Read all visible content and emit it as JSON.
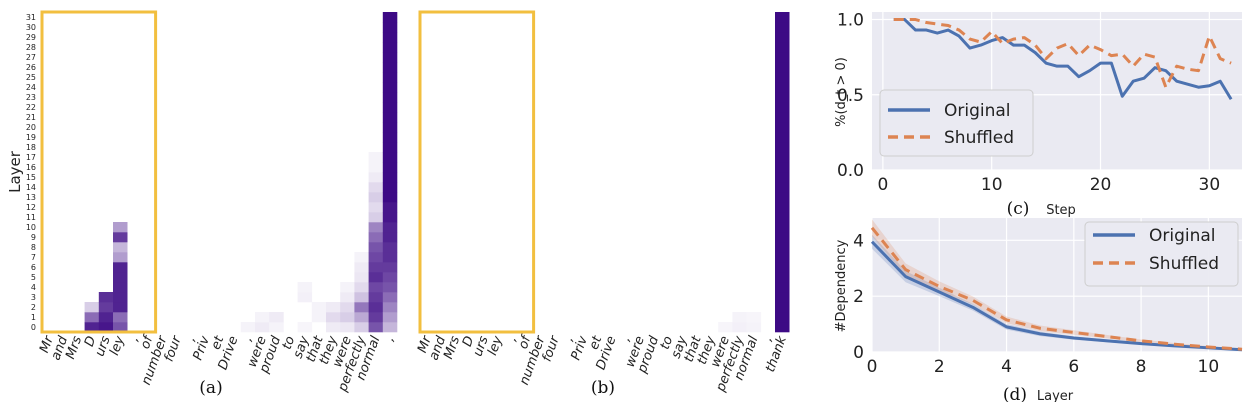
{
  "chart_data": [
    {
      "id": "a",
      "type": "heatmap",
      "caption": "(a)",
      "ylabel": "Layer",
      "layers": [
        0,
        1,
        2,
        3,
        4,
        5,
        6,
        7,
        8,
        9,
        10,
        11,
        12,
        13,
        14,
        15,
        16,
        17,
        18,
        19,
        20,
        21,
        22,
        23,
        24,
        25,
        26,
        27,
        28,
        29,
        30,
        31
      ],
      "tokens": [
        "Mr",
        "and",
        "Mrs",
        "D",
        "urs",
        "ley",
        ",",
        "of",
        "number",
        "four",
        ",",
        "Priv",
        "et",
        "Drive",
        ",",
        "were",
        "proud",
        "to",
        "say",
        "that",
        "they",
        "were",
        "perfectly",
        "normal",
        ","
      ],
      "highlight_tokens": [
        0,
        7
      ],
      "cells": [
        {
          "token": 3,
          "layer": 0,
          "v": 0.9
        },
        {
          "token": 3,
          "layer": 1,
          "v": 0.6
        },
        {
          "token": 3,
          "layer": 2,
          "v": 0.2
        },
        {
          "token": 4,
          "layer": 0,
          "v": 0.95
        },
        {
          "token": 4,
          "layer": 1,
          "v": 0.9
        },
        {
          "token": 4,
          "layer": 2,
          "v": 0.8
        },
        {
          "token": 4,
          "layer": 3,
          "v": 0.85
        },
        {
          "token": 5,
          "layer": 0,
          "v": 0.7
        },
        {
          "token": 5,
          "layer": 1,
          "v": 0.6
        },
        {
          "token": 5,
          "layer": 2,
          "v": 0.9
        },
        {
          "token": 5,
          "layer": 3,
          "v": 0.9
        },
        {
          "token": 5,
          "layer": 4,
          "v": 0.9
        },
        {
          "token": 5,
          "layer": 5,
          "v": 0.9
        },
        {
          "token": 5,
          "layer": 6,
          "v": 0.9
        },
        {
          "token": 5,
          "layer": 7,
          "v": 0.4
        },
        {
          "token": 5,
          "layer": 8,
          "v": 0.3
        },
        {
          "token": 5,
          "layer": 9,
          "v": 0.8
        },
        {
          "token": 5,
          "layer": 10,
          "v": 0.4
        },
        {
          "token": 14,
          "layer": 0,
          "v": 0.05
        },
        {
          "token": 15,
          "layer": 0,
          "v": 0.08
        },
        {
          "token": 15,
          "layer": 1,
          "v": 0.05
        },
        {
          "token": 16,
          "layer": 0,
          "v": 0.05
        },
        {
          "token": 16,
          "layer": 1,
          "v": 0.08
        },
        {
          "token": 18,
          "layer": 0,
          "v": 0.04
        },
        {
          "token": 18,
          "layer": 3,
          "v": 0.06
        },
        {
          "token": 18,
          "layer": 4,
          "v": 0.05
        },
        {
          "token": 19,
          "layer": 1,
          "v": 0.05
        },
        {
          "token": 19,
          "layer": 2,
          "v": 0.05
        },
        {
          "token": 20,
          "layer": 0,
          "v": 0.08
        },
        {
          "token": 20,
          "layer": 1,
          "v": 0.15
        },
        {
          "token": 20,
          "layer": 2,
          "v": 0.08
        },
        {
          "token": 21,
          "layer": 0,
          "v": 0.1
        },
        {
          "token": 21,
          "layer": 1,
          "v": 0.2
        },
        {
          "token": 21,
          "layer": 2,
          "v": 0.15
        },
        {
          "token": 21,
          "layer": 3,
          "v": 0.08
        },
        {
          "token": 21,
          "layer": 4,
          "v": 0.05
        },
        {
          "token": 22,
          "layer": 0,
          "v": 0.2
        },
        {
          "token": 22,
          "layer": 1,
          "v": 0.35
        },
        {
          "token": 22,
          "layer": 2,
          "v": 0.55
        },
        {
          "token": 22,
          "layer": 3,
          "v": 0.25
        },
        {
          "token": 22,
          "layer": 4,
          "v": 0.15
        },
        {
          "token": 22,
          "layer": 5,
          "v": 0.1
        },
        {
          "token": 22,
          "layer": 6,
          "v": 0.08
        },
        {
          "token": 22,
          "layer": 7,
          "v": 0.05
        },
        {
          "token": 23,
          "layer": 0,
          "v": 0.7
        },
        {
          "token": 23,
          "layer": 1,
          "v": 0.8
        },
        {
          "token": 23,
          "layer": 2,
          "v": 0.85
        },
        {
          "token": 23,
          "layer": 3,
          "v": 0.8
        },
        {
          "token": 23,
          "layer": 4,
          "v": 0.75
        },
        {
          "token": 23,
          "layer": 5,
          "v": 0.85
        },
        {
          "token": 23,
          "layer": 6,
          "v": 0.8
        },
        {
          "token": 23,
          "layer": 7,
          "v": 0.75
        },
        {
          "token": 23,
          "layer": 8,
          "v": 0.7
        },
        {
          "token": 23,
          "layer": 9,
          "v": 0.6
        },
        {
          "token": 23,
          "layer": 10,
          "v": 0.5
        },
        {
          "token": 23,
          "layer": 11,
          "v": 0.2
        },
        {
          "token": 23,
          "layer": 12,
          "v": 0.15
        },
        {
          "token": 23,
          "layer": 13,
          "v": 0.2
        },
        {
          "token": 23,
          "layer": 14,
          "v": 0.15
        },
        {
          "token": 23,
          "layer": 15,
          "v": 0.08
        },
        {
          "token": 23,
          "layer": 16,
          "v": 0.05
        },
        {
          "token": 23,
          "layer": 17,
          "v": 0.05
        },
        {
          "token": 24,
          "layer": 0,
          "v": 0.3
        },
        {
          "token": 24,
          "layer": 1,
          "v": 0.4
        },
        {
          "token": 24,
          "layer": 2,
          "v": 0.5
        },
        {
          "token": 24,
          "layer": 3,
          "v": 0.6
        },
        {
          "token": 24,
          "layer": 4,
          "v": 0.7
        },
        {
          "token": 24,
          "layer": 5,
          "v": 0.75
        },
        {
          "token": 24,
          "layer": 6,
          "v": 0.8
        },
        {
          "token": 24,
          "layer": 7,
          "v": 0.85
        },
        {
          "token": 24,
          "layer": 8,
          "v": 0.85
        },
        {
          "token": 24,
          "layer": 9,
          "v": 0.9
        },
        {
          "token": 24,
          "layer": 10,
          "v": 0.9
        },
        {
          "token": 24,
          "layer": 11,
          "v": 0.95
        },
        {
          "token": 24,
          "layer": 12,
          "v": 0.95
        },
        {
          "token": 24,
          "layer": 13,
          "v": 1.0
        },
        {
          "token": 24,
          "layer": 14,
          "v": 1.0
        },
        {
          "token": 24,
          "layer": 15,
          "v": 1.0
        },
        {
          "token": 24,
          "layer": 16,
          "v": 1.0
        },
        {
          "token": 24,
          "layer": 17,
          "v": 1.0
        },
        {
          "token": 24,
          "layer": 18,
          "v": 1.0
        },
        {
          "token": 24,
          "layer": 19,
          "v": 1.0
        },
        {
          "token": 24,
          "layer": 20,
          "v": 1.0
        },
        {
          "token": 24,
          "layer": 21,
          "v": 1.0
        },
        {
          "token": 24,
          "layer": 22,
          "v": 1.0
        },
        {
          "token": 24,
          "layer": 23,
          "v": 1.0
        },
        {
          "token": 24,
          "layer": 24,
          "v": 1.0
        },
        {
          "token": 24,
          "layer": 25,
          "v": 1.0
        },
        {
          "token": 24,
          "layer": 26,
          "v": 1.0
        },
        {
          "token": 24,
          "layer": 27,
          "v": 1.0
        },
        {
          "token": 24,
          "layer": 28,
          "v": 1.0
        },
        {
          "token": 24,
          "layer": 29,
          "v": 1.0
        },
        {
          "token": 24,
          "layer": 30,
          "v": 1.0
        },
        {
          "token": 24,
          "layer": 31,
          "v": 1.0
        }
      ]
    },
    {
      "id": "b",
      "type": "heatmap",
      "caption": "(b)",
      "tokens": [
        "Mr",
        "and",
        "Mrs",
        "D",
        "urs",
        "ley",
        ",",
        "of",
        "number",
        "four",
        ",",
        "Priv",
        "et",
        "Drive",
        ",",
        "were",
        "proud",
        "to",
        "say",
        "that",
        "they",
        "were",
        "perfectly",
        "normal",
        ",",
        "thank"
      ],
      "highlight_tokens": [
        0,
        7
      ],
      "cells": [
        {
          "token": 21,
          "layer": 0,
          "v": 0.04
        },
        {
          "token": 22,
          "layer": 0,
          "v": 0.06
        },
        {
          "token": 22,
          "layer": 1,
          "v": 0.05
        },
        {
          "token": 23,
          "layer": 0,
          "v": 0.05
        },
        {
          "token": 23,
          "layer": 1,
          "v": 0.04
        },
        {
          "token": 25,
          "layer": 0,
          "v": 1.0
        },
        {
          "token": 25,
          "layer": 1,
          "v": 1.0
        },
        {
          "token": 25,
          "layer": 2,
          "v": 1.0
        },
        {
          "token": 25,
          "layer": 3,
          "v": 1.0
        },
        {
          "token": 25,
          "layer": 4,
          "v": 1.0
        },
        {
          "token": 25,
          "layer": 5,
          "v": 1.0
        },
        {
          "token": 25,
          "layer": 6,
          "v": 1.0
        },
        {
          "token": 25,
          "layer": 7,
          "v": 1.0
        },
        {
          "token": 25,
          "layer": 8,
          "v": 1.0
        },
        {
          "token": 25,
          "layer": 9,
          "v": 1.0
        },
        {
          "token": 25,
          "layer": 10,
          "v": 1.0
        },
        {
          "token": 25,
          "layer": 11,
          "v": 1.0
        },
        {
          "token": 25,
          "layer": 12,
          "v": 1.0
        },
        {
          "token": 25,
          "layer": 13,
          "v": 1.0
        },
        {
          "token": 25,
          "layer": 14,
          "v": 1.0
        },
        {
          "token": 25,
          "layer": 15,
          "v": 1.0
        },
        {
          "token": 25,
          "layer": 16,
          "v": 1.0
        },
        {
          "token": 25,
          "layer": 17,
          "v": 1.0
        },
        {
          "token": 25,
          "layer": 18,
          "v": 1.0
        },
        {
          "token": 25,
          "layer": 19,
          "v": 1.0
        },
        {
          "token": 25,
          "layer": 20,
          "v": 1.0
        },
        {
          "token": 25,
          "layer": 21,
          "v": 1.0
        },
        {
          "token": 25,
          "layer": 22,
          "v": 1.0
        },
        {
          "token": 25,
          "layer": 23,
          "v": 1.0
        },
        {
          "token": 25,
          "layer": 24,
          "v": 1.0
        },
        {
          "token": 25,
          "layer": 25,
          "v": 1.0
        },
        {
          "token": 25,
          "layer": 26,
          "v": 1.0
        },
        {
          "token": 25,
          "layer": 27,
          "v": 1.0
        },
        {
          "token": 25,
          "layer": 28,
          "v": 1.0
        },
        {
          "token": 25,
          "layer": 29,
          "v": 1.0
        },
        {
          "token": 25,
          "layer": 30,
          "v": 1.0
        },
        {
          "token": 25,
          "layer": 31,
          "v": 1.0
        }
      ]
    },
    {
      "id": "c",
      "type": "line",
      "caption": "(c)",
      "xlabel": "Step",
      "ylabel": "%(d_t > 0)",
      "xlim": [
        -1,
        33
      ],
      "ylim": [
        0,
        1.05
      ],
      "xticks": [
        0,
        10,
        20,
        30
      ],
      "yticks": [
        0.0,
        0.5,
        1.0
      ],
      "legend_position": "lower-left",
      "series": [
        {
          "name": "Original",
          "style": "solid",
          "color": "#4c72b0",
          "x": [
            1,
            2,
            3,
            4,
            5,
            6,
            7,
            8,
            9,
            10,
            11,
            12,
            13,
            14,
            15,
            16,
            17,
            18,
            19,
            20,
            21,
            22,
            23,
            24,
            25,
            26,
            27,
            28,
            29,
            30,
            31,
            32
          ],
          "y": [
            1.0,
            1.0,
            0.93,
            0.93,
            0.91,
            0.93,
            0.89,
            0.81,
            0.83,
            0.86,
            0.88,
            0.83,
            0.83,
            0.78,
            0.71,
            0.69,
            0.69,
            0.62,
            0.66,
            0.71,
            0.71,
            0.49,
            0.59,
            0.61,
            0.68,
            0.66,
            0.59,
            0.57,
            0.55,
            0.56,
            0.59,
            0.47
          ]
        },
        {
          "name": "Shuffled",
          "style": "dashed",
          "color": "#dd8452",
          "x": [
            1,
            2,
            3,
            4,
            5,
            6,
            7,
            8,
            9,
            10,
            11,
            12,
            13,
            14,
            15,
            16,
            17,
            18,
            19,
            20,
            21,
            22,
            23,
            24,
            25,
            26,
            27,
            28,
            29,
            30,
            31,
            32
          ],
          "y": [
            1.0,
            1.0,
            1.0,
            0.98,
            0.97,
            0.96,
            0.93,
            0.87,
            0.85,
            0.92,
            0.84,
            0.87,
            0.88,
            0.83,
            0.74,
            0.81,
            0.84,
            0.76,
            0.83,
            0.8,
            0.76,
            0.77,
            0.69,
            0.77,
            0.75,
            0.55,
            0.69,
            0.67,
            0.66,
            0.89,
            0.74,
            0.71
          ]
        }
      ]
    },
    {
      "id": "d",
      "type": "line",
      "caption": "(d)",
      "xlabel": "Layer",
      "ylabel": "#Dependency",
      "xlim": [
        0,
        11
      ],
      "ylim": [
        0,
        4.8
      ],
      "xticks": [
        0,
        2,
        4,
        6,
        8,
        10
      ],
      "yticks": [
        0,
        2,
        4
      ],
      "legend_position": "top-right",
      "series": [
        {
          "name": "Original",
          "style": "solid",
          "color": "#4c72b0",
          "x": [
            0,
            1,
            2,
            3,
            4,
            5,
            6,
            7,
            8,
            9,
            10,
            11
          ],
          "y": [
            3.95,
            2.7,
            2.15,
            1.6,
            0.9,
            0.65,
            0.5,
            0.4,
            0.3,
            0.22,
            0.15,
            0.08
          ],
          "band": [
            0.25,
            0.2,
            0.15,
            0.12,
            0.1,
            0.08,
            0.06,
            0.05,
            0.04,
            0.03,
            0.03,
            0.02
          ]
        },
        {
          "name": "Shuffled",
          "style": "dashed",
          "color": "#dd8452",
          "x": [
            0,
            1,
            2,
            3,
            4,
            5,
            6,
            7,
            8,
            9,
            10,
            11
          ],
          "y": [
            4.45,
            2.95,
            2.35,
            1.85,
            1.15,
            0.85,
            0.7,
            0.55,
            0.4,
            0.28,
            0.18,
            0.1
          ],
          "band": [
            0.3,
            0.22,
            0.18,
            0.14,
            0.12,
            0.1,
            0.08,
            0.06,
            0.05,
            0.04,
            0.03,
            0.02
          ]
        }
      ]
    }
  ],
  "colors": {
    "heat_max": "#3d0a85",
    "highlight": "#f2bf3f",
    "grid_bg": "#eaeaf2"
  }
}
